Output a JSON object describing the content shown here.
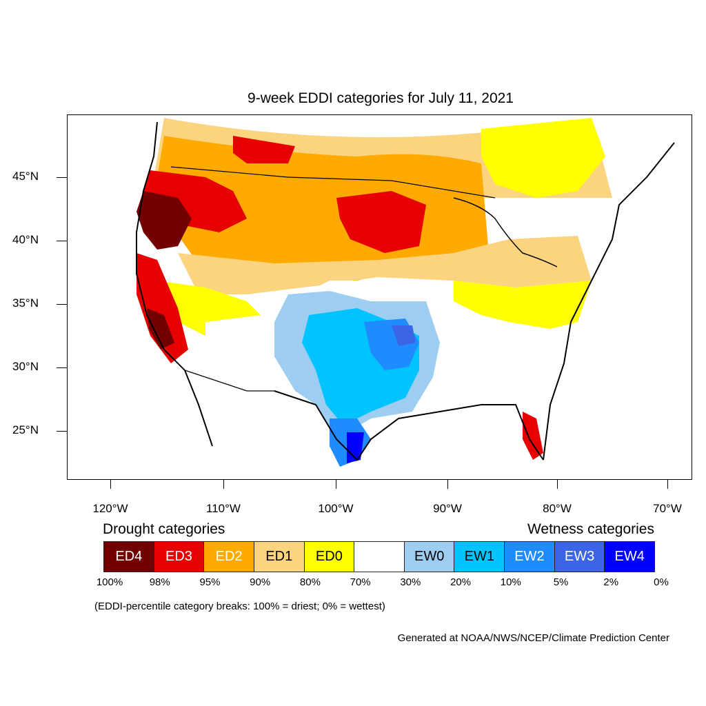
{
  "title": "9-week EDDI categories for July 11, 2021",
  "lat_labels": [
    "45°N",
    "40°N",
    "35°N",
    "30°N",
    "25°N"
  ],
  "lon_labels": [
    "120°W",
    "110°W",
    "100°W",
    "90°W",
    "80°W",
    "70°W"
  ],
  "legend": {
    "drought_heading": "Drought categories",
    "wetness_heading": "Wetness categories",
    "categories": [
      {
        "label": "ED4",
        "color": "#730000",
        "text_color": "#ffffff"
      },
      {
        "label": "ED3",
        "color": "#e60000",
        "text_color": "#ffffff"
      },
      {
        "label": "ED2",
        "color": "#ffaa00",
        "text_color": "#ffffff"
      },
      {
        "label": "ED1",
        "color": "#fcd37f",
        "text_color": "#000000"
      },
      {
        "label": "ED0",
        "color": "#ffff00",
        "text_color": "#000000"
      },
      {
        "label": "",
        "color": "#ffffff",
        "text_color": "#000000"
      },
      {
        "label": "EW0",
        "color": "#9dcdf0",
        "text_color": "#000000"
      },
      {
        "label": "EW1",
        "color": "#00c3ff",
        "text_color": "#000000"
      },
      {
        "label": "EW2",
        "color": "#1e8cff",
        "text_color": "#ffffff"
      },
      {
        "label": "EW3",
        "color": "#3c64e6",
        "text_color": "#ffffff"
      },
      {
        "label": "EW4",
        "color": "#0000ff",
        "text_color": "#ffffff"
      }
    ],
    "percent_breaks": [
      "100%",
      "98%",
      "95%",
      "90%",
      "80%",
      "70%",
      "30%",
      "20%",
      "10%",
      "5%",
      "2%",
      "0%"
    ]
  },
  "note": "(EDDI-percentile category breaks: 100% = driest; 0% = wettest)",
  "credit": "Generated at NOAA/NWS/NCEP/Climate Prediction Center"
}
